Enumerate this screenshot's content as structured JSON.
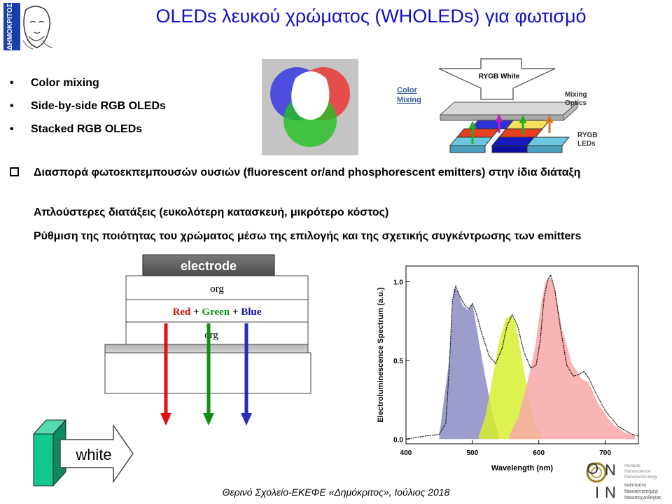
{
  "title": "OLEDs λευκού χρώματος (WHOLEDs) για φωτισμό",
  "logo_text": "ΔΗΜΟΚΡΙΤΟΣ",
  "bullets": [
    "Color mixing",
    "Side-by-side RGB OLEDs",
    "Stacked RGB OLEDs"
  ],
  "paragraphs": [
    "Διασπορά φωτοεκπεμπουσών ουσιών (fluorescent or/and phosphorescent emitters) στην ίδια διάταξη",
    "Απλούστερες διατάξεις (ευκολότερη κατασκευή, μικρότερο κόστος)",
    "Ρύθμιση της ποιότητας του χρώματος μέσω της επιλογής και της σχετικής συγκέντρωσης των emitters"
  ],
  "mixing_diagram": {
    "top_label": "RYGB White",
    "left_label_line1": "Color",
    "left_label_line2": "Mixing",
    "optics_line1": "Mixing",
    "optics_line2": "Optics",
    "leds_line1": "RYGB",
    "leds_line2": "LEDs"
  },
  "stack_diagram": {
    "electrode": "electrode",
    "org_top": "org",
    "red": "Red",
    "plus1": "+",
    "green": "Green",
    "plus2": "+",
    "blue": "Blue",
    "org_bottom": "org",
    "white": "white"
  },
  "colors": {
    "title": "#1010c8",
    "red": "#e01010",
    "green": "#109010",
    "blue": "#1414b4",
    "teal": "#10b890"
  },
  "chart_data": {
    "type": "area",
    "xlabel": "Wavelength (nm)",
    "ylabel": "Electroluminescence Spectrum (a.u.)",
    "xlim": [
      400,
      750
    ],
    "ylim": [
      -0.03,
      1.1
    ],
    "x_ticks": [
      400,
      500,
      600,
      700
    ],
    "y_ticks": [
      0.0,
      0.5,
      1.0
    ],
    "y_tick_labels": [
      "0.0",
      "0.5",
      "1.0"
    ],
    "series": [
      {
        "color": "#8c8cc4",
        "x": [
          450,
          465,
          472,
          478,
          485,
          493,
          500,
          510,
          520,
          530,
          540
        ],
        "y": [
          0.02,
          0.5,
          0.96,
          0.94,
          0.85,
          0.82,
          0.86,
          0.62,
          0.38,
          0.17,
          0.02
        ]
      },
      {
        "color": "#d8f030",
        "x": [
          510,
          520,
          530,
          540,
          550,
          558,
          565,
          575,
          585,
          595,
          605
        ],
        "y": [
          0.02,
          0.15,
          0.38,
          0.62,
          0.76,
          0.79,
          0.74,
          0.5,
          0.27,
          0.08,
          0.02
        ]
      },
      {
        "color": "#f8a8a8",
        "x": [
          555,
          570,
          585,
          595,
          603,
          610,
          617,
          625,
          635,
          650,
          665,
          675,
          690,
          710,
          730,
          745
        ],
        "y": [
          0.02,
          0.15,
          0.4,
          0.6,
          0.85,
          1.0,
          1.03,
          0.95,
          0.7,
          0.48,
          0.38,
          0.36,
          0.22,
          0.1,
          0.04,
          0.02
        ]
      },
      {
        "color": "#000000",
        "x": [
          400,
          430,
          450,
          460,
          465,
          470,
          475,
          482,
          490,
          495,
          500,
          505,
          515,
          525,
          535,
          545,
          552,
          560,
          568,
          578,
          588,
          596,
          602,
          608,
          614,
          618,
          624,
          632,
          642,
          652,
          660,
          668,
          675,
          685,
          700,
          720,
          740,
          750
        ],
        "y": [
          0.0,
          0.02,
          0.03,
          0.1,
          0.45,
          0.88,
          0.97,
          0.9,
          0.84,
          0.83,
          0.86,
          0.81,
          0.66,
          0.53,
          0.48,
          0.58,
          0.72,
          0.79,
          0.72,
          0.55,
          0.45,
          0.47,
          0.62,
          0.9,
          1.02,
          1.04,
          0.95,
          0.72,
          0.47,
          0.4,
          0.41,
          0.43,
          0.39,
          0.3,
          0.18,
          0.08,
          0.03,
          0.02
        ]
      }
    ]
  },
  "footer": "Θερινό Σχολείο-ΕΚΕΦΕ «Δημόκριτος», Ιούλιος 2018",
  "institute_logo": {
    "letters": [
      "O",
      "N",
      "I",
      "N"
    ],
    "lines": [
      "Institute",
      "Nanoscience",
      "Nanotechnology",
      "Ινστιτούτο",
      "Νανοεπιστήμης",
      "Νανοτεχνολογίας"
    ]
  }
}
